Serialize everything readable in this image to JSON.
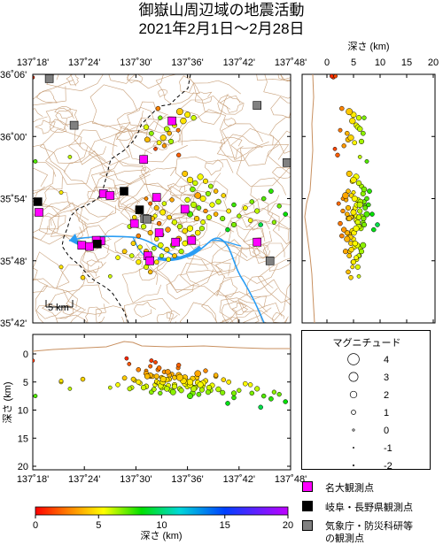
{
  "title_line1": "御嶽山周辺域の地震活動",
  "title_line2": "2021年2月1日～2月28日",
  "map": {
    "lon_ticks": [
      "137˚18'",
      "137˚24'",
      "137˚30'",
      "137˚36'",
      "137˚42'",
      "137˚48'"
    ],
    "lat_ticks": [
      "36˚06'",
      "36˚00'",
      "35˚54'",
      "35˚48'",
      "35˚42'"
    ],
    "scale_label": "5 km"
  },
  "depth_section_right": {
    "axis_title": "深さ (km)",
    "ticks": [
      "0",
      "5",
      "10",
      "15",
      "20"
    ]
  },
  "depth_section_bottom": {
    "axis_title": "深さ (km)",
    "ticks": [
      "0",
      "5",
      "10",
      "15",
      "20"
    ],
    "lon_ticks": [
      "137˚18'",
      "137˚24'",
      "137˚30'",
      "137˚36'",
      "137˚42'",
      "137˚48'"
    ]
  },
  "magnitude_legend": {
    "title": "マグニチュード",
    "labels": [
      "4",
      "3",
      "2",
      "1",
      "0",
      "-1",
      "-2"
    ]
  },
  "colorbar": {
    "ticks": [
      "0",
      "5",
      "10",
      "15",
      "20"
    ],
    "label": "深さ (km)",
    "colors": [
      "#ff0000",
      "#ff8000",
      "#ffff00",
      "#00e000",
      "#00d8d8",
      "#0040ff",
      "#c000ff"
    ]
  },
  "station_legend": {
    "nagoya_univ": "名大観測点",
    "gifu_nagano": "岐阜・長野県観測点",
    "jma_nied_line1": "気象庁・防災科研等",
    "jma_nied_line2": "の観測点",
    "colors": {
      "nagoya_univ": "#ff00ff",
      "gifu_nagano": "#000000",
      "jma_nied": "#808080"
    }
  },
  "stations": {
    "nagoya_univ": [
      [
        137.57,
        36.025
      ],
      [
        137.515,
        35.963
      ],
      [
        137.595,
        35.883
      ],
      [
        137.497,
        35.86
      ],
      [
        137.545,
        35.845
      ],
      [
        137.432,
        35.832
      ],
      [
        137.437,
        35.908
      ],
      [
        137.45,
        35.905
      ],
      [
        137.423,
        35.833
      ],
      [
        137.395,
        35.825
      ],
      [
        137.41,
        35.823
      ],
      [
        137.523,
        35.808
      ],
      [
        137.527,
        35.8
      ],
      [
        137.577,
        35.83
      ],
      [
        137.54,
        35.902
      ],
      [
        137.608,
        35.833
      ],
      [
        137.735,
        35.83
      ],
      [
        137.312,
        35.878
      ]
    ],
    "gifu_nagano": [
      [
        137.31,
        35.895
      ],
      [
        137.477,
        35.912
      ],
      [
        137.507,
        35.882
      ],
      [
        137.425,
        35.827
      ]
    ],
    "jma_nied": [
      [
        137.332,
        36.093
      ],
      [
        137.38,
        36.018
      ],
      [
        137.735,
        36.05
      ],
      [
        137.76,
        35.8
      ],
      [
        137.517,
        35.868
      ],
      [
        137.522,
        35.867
      ],
      [
        137.793,
        35.958
      ]
    ]
  },
  "events": [
    [
      137.585,
      36.04,
      4.2,
      1.9
    ],
    [
      137.6,
      36.035,
      5.0,
      1.5
    ],
    [
      137.612,
      36.03,
      6.0,
      1.3
    ],
    [
      137.592,
      36.025,
      4.8,
      1.7
    ],
    [
      137.575,
      36.018,
      5.5,
      1.2
    ],
    [
      137.56,
      36.012,
      6.2,
      1.4
    ],
    [
      137.565,
      36.005,
      3.8,
      1.0
    ],
    [
      137.553,
      35.998,
      4.5,
      1.6
    ],
    [
      137.545,
      35.99,
      5.2,
      1.1
    ],
    [
      137.555,
      35.985,
      3.2,
      0.9
    ],
    [
      137.568,
      35.992,
      6.5,
      1.2
    ],
    [
      137.582,
      36.01,
      2.5,
      0.8
    ],
    [
      137.543,
      36.045,
      2.8,
      1.0
    ],
    [
      137.547,
      36.03,
      7.0,
      0.9
    ],
    [
      137.52,
      36.015,
      5.8,
      1.3
    ],
    [
      137.53,
      36.005,
      6.8,
      1.1
    ],
    [
      137.522,
      35.995,
      4.0,
      1.4
    ],
    [
      137.538,
      35.98,
      1.5,
      0.7
    ],
    [
      137.583,
      35.97,
      2.0,
      0.9
    ],
    [
      137.3,
      36.095,
      1.2,
      0.6
    ],
    [
      137.305,
      35.96,
      7.5,
      0.8
    ],
    [
      137.372,
      35.967,
      6.2,
      0.7
    ],
    [
      137.355,
      35.91,
      5.0,
      0.8
    ],
    [
      137.595,
      35.94,
      4.2,
      1.5
    ],
    [
      137.605,
      35.93,
      5.0,
      1.7
    ],
    [
      137.615,
      35.925,
      6.0,
      1.3
    ],
    [
      137.625,
      35.935,
      5.5,
      1.6
    ],
    [
      137.635,
      35.928,
      4.8,
      1.2
    ],
    [
      137.645,
      35.92,
      6.5,
      1.1
    ],
    [
      137.61,
      35.915,
      7.0,
      1.4
    ],
    [
      137.62,
      35.905,
      3.5,
      1.8
    ],
    [
      137.63,
      35.9,
      5.2,
      1.5
    ],
    [
      137.64,
      35.908,
      6.8,
      1.2
    ],
    [
      137.655,
      35.912,
      4.0,
      1.0
    ],
    [
      137.6,
      35.898,
      5.8,
      1.3
    ],
    [
      137.612,
      35.89,
      6.2,
      1.6
    ],
    [
      137.622,
      35.885,
      7.2,
      1.1
    ],
    [
      137.635,
      35.88,
      3.0,
      0.9
    ],
    [
      137.648,
      35.89,
      5.6,
      1.2
    ],
    [
      137.66,
      35.895,
      6.3,
      1.4
    ],
    [
      137.67,
      35.905,
      4.6,
      1.0
    ],
    [
      137.605,
      35.875,
      7.5,
      1.5
    ],
    [
      137.618,
      35.868,
      4.2,
      1.2
    ],
    [
      137.63,
      35.862,
      5.7,
      1.1
    ],
    [
      137.642,
      35.87,
      6.0,
      1.3
    ],
    [
      137.655,
      35.875,
      3.8,
      1.0
    ],
    [
      137.668,
      35.868,
      6.9,
      1.2
    ],
    [
      137.68,
      35.88,
      5.0,
      1.1
    ],
    [
      137.69,
      35.89,
      7.8,
      1.0
    ],
    [
      137.7,
      35.872,
      6.5,
      0.9
    ],
    [
      137.712,
      35.885,
      5.3,
      1.1
    ],
    [
      137.725,
      35.895,
      7.0,
      1.0
    ],
    [
      137.735,
      35.88,
      6.2,
      1.2
    ],
    [
      137.748,
      35.9,
      7.5,
      1.0
    ],
    [
      137.762,
      35.912,
      8.0,
      1.1
    ],
    [
      137.778,
      35.888,
      7.2,
      0.9
    ],
    [
      137.79,
      35.875,
      8.5,
      1.0
    ],
    [
      137.768,
      35.862,
      6.8,
      0.9
    ],
    [
      137.742,
      35.858,
      9.5,
      1.0
    ],
    [
      137.722,
      35.865,
      5.5,
      1.0
    ],
    [
      137.69,
      35.858,
      7.0,
      1.2
    ],
    [
      137.678,
      35.85,
      8.8,
      1.0
    ],
    [
      137.54,
      35.885,
      4.0,
      1.2
    ],
    [
      137.552,
      35.878,
      5.0,
      1.5
    ],
    [
      137.565,
      35.87,
      4.5,
      1.1
    ],
    [
      137.575,
      35.862,
      5.8,
      1.3
    ],
    [
      137.585,
      35.855,
      6.2,
      1.2
    ],
    [
      137.595,
      35.848,
      4.8,
      1.4
    ],
    [
      137.605,
      35.852,
      5.5,
      1.6
    ],
    [
      137.562,
      35.85,
      3.2,
      1.3
    ],
    [
      137.55,
      35.842,
      4.2,
      1.1
    ],
    [
      137.54,
      35.835,
      5.0,
      1.0
    ],
    [
      137.528,
      35.845,
      3.8,
      1.2
    ],
    [
      137.515,
      35.855,
      6.0,
      1.3
    ],
    [
      137.505,
      35.84,
      2.8,
      1.0
    ],
    [
      137.495,
      35.828,
      4.5,
      1.1
    ],
    [
      137.508,
      35.822,
      5.2,
      1.0
    ],
    [
      137.52,
      35.815,
      3.5,
      1.2
    ],
    [
      137.535,
      35.82,
      6.3,
      1.1
    ],
    [
      137.548,
      35.825,
      5.7,
      1.4
    ],
    [
      137.56,
      35.818,
      4.6,
      1.3
    ],
    [
      137.572,
      35.825,
      6.8,
      1.5
    ],
    [
      137.583,
      35.835,
      3.8,
      1.6
    ],
    [
      137.595,
      35.828,
      5.3,
      1.4
    ],
    [
      137.588,
      35.815,
      6.5,
      1.2
    ],
    [
      137.575,
      35.808,
      4.2,
      1.1
    ],
    [
      137.563,
      35.802,
      5.6,
      1.0
    ],
    [
      137.55,
      35.808,
      6.1,
      0.9
    ],
    [
      137.54,
      35.798,
      4.9,
      1.0
    ],
    [
      137.61,
      35.838,
      4.4,
      1.3
    ],
    [
      137.62,
      35.845,
      5.1,
      1.4
    ],
    [
      137.628,
      35.852,
      6.4,
      1.2
    ],
    [
      137.545,
      35.86,
      2.5,
      1.0
    ],
    [
      137.532,
      35.868,
      4.0,
      1.1
    ],
    [
      137.555,
      35.892,
      5.9,
      1.0
    ],
    [
      137.57,
      35.898,
      3.6,
      0.9
    ],
    [
      137.497,
      35.87,
      4.7,
      1.0
    ],
    [
      137.488,
      35.855,
      6.2,
      1.1
    ],
    [
      137.505,
      35.798,
      5.0,
      1.2
    ],
    [
      137.492,
      35.808,
      6.0,
      1.0
    ],
    [
      137.478,
      35.815,
      4.3,
      1.1
    ],
    [
      137.465,
      35.805,
      5.5,
      1.0
    ],
    [
      137.52,
      35.79,
      5.8,
      1.2
    ],
    [
      137.528,
      35.782,
      4.0,
      1.0
    ],
    [
      137.537,
      35.872,
      5.5,
      0.9
    ],
    [
      137.528,
      35.892,
      2.2,
      0.8
    ],
    [
      137.52,
      35.9,
      3.0,
      0.7
    ],
    [
      137.397,
      35.773,
      4.5,
      1.0
    ],
    [
      137.355,
      35.79,
      4.8,
      0.8
    ],
    [
      137.45,
      35.775,
      6.0,
      0.7
    ]
  ],
  "right_section_pts": [
    [
      36.097,
      0.9,
      0.8
    ],
    [
      36.097,
      1.6,
      0.7
    ]
  ],
  "bottom_section_pts": [
    [
      137.482,
      0.8,
      0.7
    ],
    [
      137.487,
      1.8,
      0.7
    ],
    [
      137.53,
      1.2,
      0.8
    ]
  ]
}
